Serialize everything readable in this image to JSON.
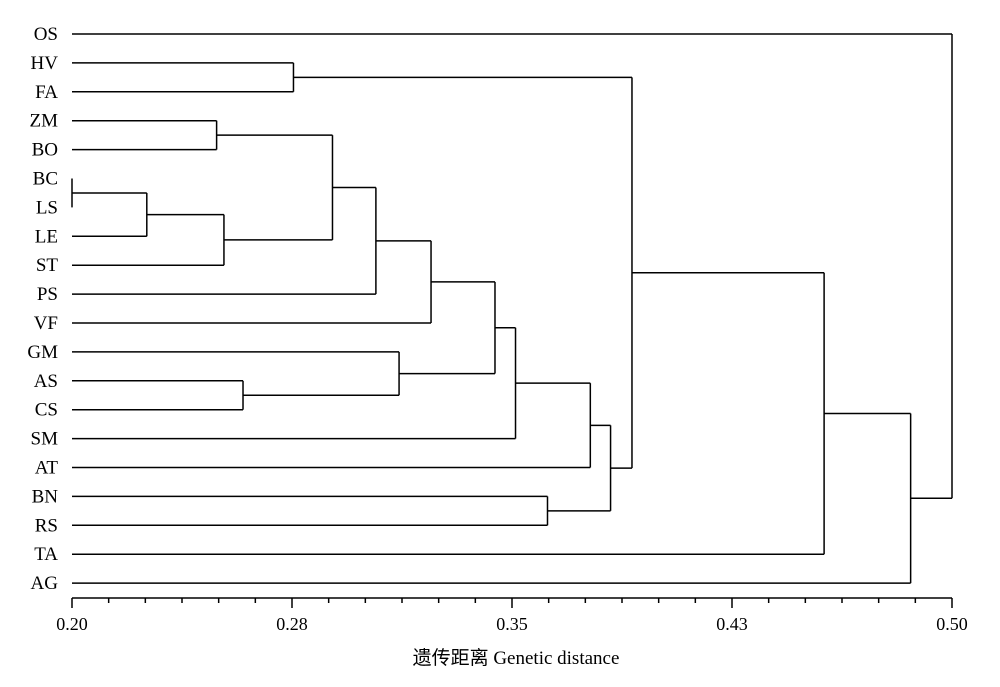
{
  "chart_data": {
    "type": "dendrogram",
    "xlabel": "遗传距离 Genetic distance",
    "xlim": [
      0.2,
      0.5
    ],
    "x_ticks": [
      {
        "value": 0.2,
        "label": "0.20"
      },
      {
        "value": 0.275,
        "label": "0.28"
      },
      {
        "value": 0.35,
        "label": "0.35"
      },
      {
        "value": 0.425,
        "label": "0.43"
      },
      {
        "value": 0.5,
        "label": "0.50"
      }
    ],
    "x_minor_ticks": [
      0.2125,
      0.225,
      0.2375,
      0.25,
      0.2625,
      0.2875,
      0.3,
      0.3125,
      0.325,
      0.3375,
      0.3625,
      0.375,
      0.3875,
      0.4,
      0.4125,
      0.4375,
      0.45,
      0.4625,
      0.475,
      0.4875
    ],
    "leaves": [
      "OS",
      "HV",
      "FA",
      "ZM",
      "BO",
      "BC",
      "LS",
      "LE",
      "ST",
      "PS",
      "VF",
      "GM",
      "AS",
      "CS",
      "SM",
      "AT",
      "BN",
      "RS",
      "TA",
      "AG"
    ],
    "merges": [
      {
        "id": "n1",
        "children": [
          "BC",
          "LS"
        ],
        "height": 0.2
      },
      {
        "id": "n2",
        "children": [
          "n1",
          "LE"
        ],
        "height": 0.2255
      },
      {
        "id": "n3",
        "children": [
          "n2",
          "ST"
        ],
        "height": 0.2518
      },
      {
        "id": "n4",
        "children": [
          "ZM",
          "BO"
        ],
        "height": 0.2493
      },
      {
        "id": "n5",
        "children": [
          "n4",
          "n3"
        ],
        "height": 0.2888
      },
      {
        "id": "n6",
        "children": [
          "n5",
          "PS"
        ],
        "height": 0.3036
      },
      {
        "id": "n7",
        "children": [
          "n6",
          "VF"
        ],
        "height": 0.3224
      },
      {
        "id": "n8",
        "children": [
          "AS",
          "CS"
        ],
        "height": 0.2583
      },
      {
        "id": "n9",
        "children": [
          "GM",
          "n8"
        ],
        "height": 0.3115
      },
      {
        "id": "n10",
        "children": [
          "n7",
          "n9"
        ],
        "height": 0.3442
      },
      {
        "id": "n11",
        "children": [
          "n10",
          "SM"
        ],
        "height": 0.3512
      },
      {
        "id": "n12",
        "children": [
          "n11",
          "AT"
        ],
        "height": 0.3767
      },
      {
        "id": "n13",
        "children": [
          "BN",
          "RS"
        ],
        "height": 0.3621
      },
      {
        "id": "n14",
        "children": [
          "n12",
          "n13"
        ],
        "height": 0.3836
      },
      {
        "id": "n15",
        "children": [
          "HV",
          "FA"
        ],
        "height": 0.2755
      },
      {
        "id": "n16",
        "children": [
          "n15",
          "n14"
        ],
        "height": 0.3909
      },
      {
        "id": "n17",
        "children": [
          "n16",
          "TA"
        ],
        "height": 0.4564
      },
      {
        "id": "n18",
        "children": [
          "n17",
          "AG"
        ],
        "height": 0.4859
      },
      {
        "id": "n19",
        "children": [
          "OS",
          "n18"
        ],
        "height": 0.5
      }
    ]
  }
}
